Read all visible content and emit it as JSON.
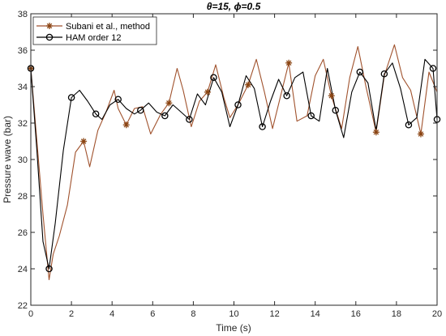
{
  "chart_data": {
    "type": "line",
    "title": "θ=15, ϕ=0.5",
    "xlabel": "Time (s)",
    "ylabel": "Pressure wave (bar)",
    "xlim": [
      0,
      20
    ],
    "ylim": [
      22,
      38
    ],
    "xticks": [
      0,
      2,
      4,
      6,
      8,
      10,
      12,
      14,
      16,
      18,
      20
    ],
    "yticks": [
      22,
      24,
      26,
      28,
      30,
      32,
      34,
      36,
      38
    ],
    "grid": false,
    "legend_position": "top-left",
    "series": [
      {
        "name": "Subani et al., method",
        "color": "#a0522d",
        "marker_color": "#8b4513",
        "marker": "asterisk",
        "x": [
          0,
          0.3,
          0.6,
          0.9,
          1.1,
          1.4,
          1.8,
          2.2,
          2.6,
          2.9,
          3.3,
          3.7,
          4.1,
          4.3,
          4.7,
          5.1,
          5.5,
          5.9,
          6.4,
          6.8,
          7.2,
          7.5,
          7.9,
          8.3,
          8.7,
          9.1,
          9.5,
          9.8,
          10.2,
          10.7,
          11.1,
          11.5,
          11.9,
          12.3,
          12.7,
          13.1,
          13.6,
          14.0,
          14.4,
          14.8,
          15.3,
          15.7,
          16.1,
          16.5,
          17.0,
          17.4,
          17.9,
          18.3,
          18.7,
          19.2,
          19.6,
          20
        ],
        "y": [
          35.0,
          31.0,
          27.0,
          23.4,
          24.8,
          25.8,
          27.5,
          30.4,
          31.0,
          29.6,
          31.6,
          32.6,
          33.8,
          32.8,
          31.9,
          32.8,
          32.9,
          31.4,
          32.5,
          33.1,
          35.0,
          33.8,
          31.8,
          33.2,
          33.7,
          35.2,
          33.4,
          32.3,
          33.0,
          34.1,
          35.5,
          33.7,
          31.7,
          33.5,
          35.3,
          32.1,
          32.4,
          34.6,
          35.5,
          33.5,
          31.7,
          34.5,
          36.2,
          34.0,
          31.5,
          34.6,
          36.3,
          34.5,
          33.8,
          31.4,
          34.8,
          33.7
        ],
        "marker_indices": [
          0,
          8,
          14,
          19,
          24,
          29,
          34,
          39,
          44,
          49
        ]
      },
      {
        "name": "HAM order 12",
        "color": "#000000",
        "marker": "circle",
        "x": [
          0,
          0.3,
          0.6,
          0.9,
          1.2,
          1.6,
          2.0,
          2.4,
          2.8,
          3.2,
          3.5,
          3.9,
          4.3,
          4.7,
          5.1,
          5.4,
          5.8,
          6.2,
          6.6,
          7.0,
          7.4,
          7.8,
          8.2,
          8.6,
          9.0,
          9.4,
          9.8,
          10.2,
          10.6,
          11.0,
          11.4,
          11.8,
          12.2,
          12.6,
          13.0,
          13.4,
          13.8,
          14.2,
          14.6,
          15.0,
          15.4,
          15.8,
          16.2,
          16.6,
          17.0,
          17.4,
          17.8,
          18.2,
          18.6,
          19.0,
          19.4,
          19.8,
          20
        ],
        "y": [
          35.0,
          30.5,
          25.5,
          24.0,
          26.5,
          30.5,
          33.4,
          33.8,
          33.2,
          32.5,
          32.2,
          33.0,
          33.3,
          32.8,
          32.5,
          32.7,
          33.1,
          32.6,
          32.4,
          33.0,
          32.6,
          32.2,
          33.6,
          33.0,
          34.5,
          33.7,
          31.8,
          33.0,
          34.6,
          33.9,
          31.8,
          33.2,
          34.4,
          33.5,
          34.5,
          34.8,
          32.4,
          32.1,
          35.0,
          32.7,
          31.2,
          33.7,
          34.8,
          34.2,
          31.6,
          34.7,
          35.3,
          33.9,
          31.9,
          32.3,
          35.5,
          35.0,
          32.2
        ],
        "marker_indices": [
          0,
          3,
          6,
          9,
          12,
          15,
          18,
          21,
          24,
          27,
          30,
          33,
          36,
          39,
          42,
          45,
          48,
          51,
          52
        ]
      }
    ]
  }
}
